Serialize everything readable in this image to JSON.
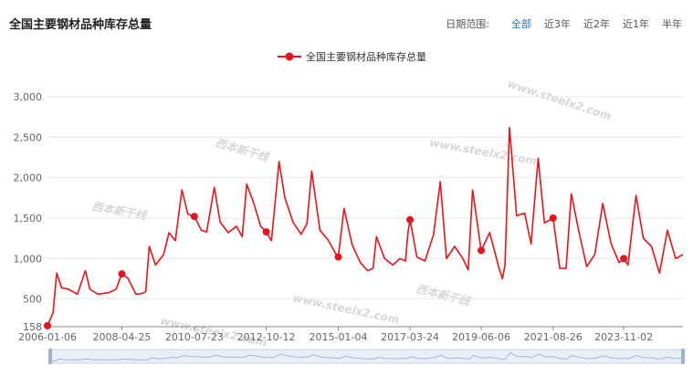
{
  "header": {
    "title": "全国主要钢材品种库存总量",
    "range_label": "日期范围:",
    "range_options": [
      "全部",
      "近3年",
      "近2年",
      "近1年",
      "半年"
    ],
    "active_index": 0
  },
  "colors": {
    "series": "#e8141b",
    "grid": "#e8e8e8",
    "axis": "#888888",
    "active": "#1a73c8"
  },
  "watermark": {
    "url": "www.steelx2.com",
    "brand": "西本新干线"
  },
  "chart_data": {
    "type": "line",
    "title": "全国主要钢材品种库存总量",
    "legend": "top-center",
    "grid": true,
    "ylim": [
      158,
      3000
    ],
    "y_ticks": [
      3000,
      2500,
      2000,
      1500,
      1000,
      500,
      158
    ],
    "y_tick_labels": [
      "3,000",
      "2,500",
      "2,000",
      "1,500",
      "1,000",
      "500",
      "158"
    ],
    "x_tick_labels": [
      "2006-01-06",
      "2008-04-25",
      "2010-07-23",
      "2012-10-12",
      "2015-01-04",
      "2017-03-24",
      "2019-06-06",
      "2021-08-26",
      "2023-11-02"
    ],
    "series": [
      {
        "name": "全国主要钢材品种库存总量",
        "x": [
          "2006-01-06",
          "2006-03-10",
          "2006-04-20",
          "2006-06-15",
          "2006-09-01",
          "2006-12-10",
          "2007-03-10",
          "2007-05-01",
          "2007-08-01",
          "2007-12-01",
          "2008-02-20",
          "2008-04-25",
          "2008-07-01",
          "2008-10-01",
          "2008-12-10",
          "2009-01-20",
          "2009-03-01",
          "2009-05-10",
          "2009-08-10",
          "2009-10-10",
          "2009-12-20",
          "2010-03-05",
          "2010-05-10",
          "2010-07-23",
          "2010-10-10",
          "2010-12-10",
          "2011-03-05",
          "2011-05-10",
          "2011-08-10",
          "2011-11-10",
          "2012-01-15",
          "2012-03-05",
          "2012-05-20",
          "2012-08-10",
          "2012-10-12",
          "2012-12-10",
          "2013-03-05",
          "2013-05-10",
          "2013-08-10",
          "2013-11-10",
          "2014-01-15",
          "2014-03-10",
          "2014-06-10",
          "2014-09-10",
          "2014-12-01",
          "2015-01-04",
          "2015-03-10",
          "2015-06-10",
          "2015-09-10",
          "2015-12-01",
          "2016-02-01",
          "2016-03-10",
          "2016-06-10",
          "2016-09-10",
          "2016-12-01",
          "2017-02-01",
          "2017-03-01",
          "2017-03-24",
          "2017-06-10",
          "2017-09-10",
          "2017-12-15",
          "2018-03-01",
          "2018-05-10",
          "2018-08-10",
          "2018-11-10",
          "2019-01-10",
          "2019-03-01",
          "2019-06-06",
          "2019-09-10",
          "2019-12-20",
          "2020-02-01",
          "2020-03-01",
          "2020-04-20",
          "2020-07-10",
          "2020-10-10",
          "2020-12-20",
          "2021-03-10",
          "2021-05-20",
          "2021-08-26",
          "2021-11-10",
          "2022-01-20",
          "2022-03-20",
          "2022-06-10",
          "2022-09-10",
          "2022-12-10",
          "2023-03-10",
          "2023-06-10",
          "2023-09-10",
          "2023-11-02",
          "2023-12-20",
          "2024-03-20",
          "2024-06-10",
          "2024-09-10",
          "2024-12-10",
          "2025-03-10",
          "2025-06-10",
          "2025-09-01"
        ],
        "values": [
          170,
          330,
          820,
          640,
          620,
          560,
          850,
          620,
          560,
          580,
          620,
          810,
          760,
          560,
          570,
          590,
          1150,
          920,
          1050,
          1320,
          1220,
          1850,
          1550,
          1520,
          1350,
          1330,
          1880,
          1450,
          1320,
          1400,
          1270,
          1920,
          1700,
          1400,
          1330,
          1220,
          2200,
          1750,
          1450,
          1300,
          1430,
          2080,
          1350,
          1230,
          1070,
          1020,
          1620,
          1170,
          950,
          850,
          880,
          1270,
          1000,
          920,
          1000,
          970,
          1320,
          1480,
          1020,
          970,
          1300,
          1950,
          1000,
          1150,
          1000,
          860,
          1850,
          1100,
          1320,
          900,
          750,
          920,
          2620,
          1530,
          1560,
          1180,
          2240,
          1440,
          1500,
          880,
          880,
          1800,
          1350,
          900,
          1050,
          1680,
          1190,
          950,
          1000,
          920,
          1780,
          1250,
          1150,
          820,
          1350,
          1000,
          1050
        ]
      }
    ],
    "markers": [
      {
        "x": "2006-01-06",
        "y": 170
      },
      {
        "x": "2008-04-25",
        "y": 810
      },
      {
        "x": "2010-07-23",
        "y": 1520
      },
      {
        "x": "2012-10-12",
        "y": 1330
      },
      {
        "x": "2015-01-04",
        "y": 1020
      },
      {
        "x": "2017-03-24",
        "y": 1480
      },
      {
        "x": "2019-06-06",
        "y": 1100
      },
      {
        "x": "2021-08-26",
        "y": 1500
      },
      {
        "x": "2023-11-02",
        "y": 1000
      }
    ]
  }
}
